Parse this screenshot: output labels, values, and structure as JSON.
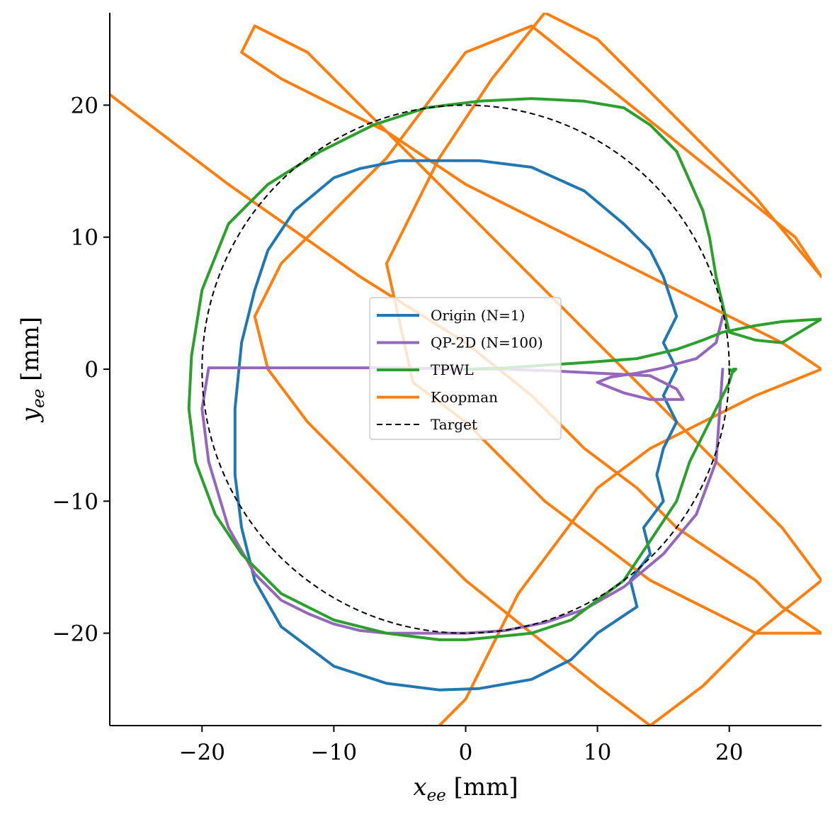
{
  "chart_data": {
    "type": "line",
    "title": "",
    "xlabel": {
      "var": "x",
      "sub": "ee",
      "unit": " [mm]"
    },
    "ylabel": {
      "var": "y",
      "sub": "ee",
      "unit": " [mm]"
    },
    "xlim": [
      -27,
      27
    ],
    "ylim": [
      -27,
      27
    ],
    "xticks": [
      -20,
      -10,
      0,
      10,
      20
    ],
    "yticks": [
      -20,
      -10,
      0,
      10,
      20
    ],
    "xtick_labels": [
      "−20",
      "−10",
      "0",
      "10",
      "20"
    ],
    "ytick_labels": [
      "−20",
      "−10",
      "0",
      "10",
      "20"
    ],
    "grid": false,
    "legend_position": "center",
    "series": [
      {
        "name": "Origin (N=1)",
        "color": "#1f77b4",
        "x": [
          1,
          5,
          9,
          12,
          14,
          15,
          16,
          15,
          16,
          15,
          16,
          15,
          14.5,
          15,
          13.5,
          14,
          12.5,
          13,
          10,
          8,
          5,
          1,
          -2,
          -6,
          -10,
          -14,
          -16,
          -17,
          -17.5,
          -17.5,
          -17,
          -16,
          -15,
          -13,
          -10,
          -8,
          -5,
          -2,
          0,
          1
        ],
        "y": [
          15.8,
          15.3,
          13.5,
          11,
          9,
          7,
          4,
          2,
          0,
          -2,
          -4,
          -6,
          -8,
          -10,
          -12,
          -14,
          -16,
          -18,
          -20,
          -22,
          -23.5,
          -24.2,
          -24.3,
          -23.8,
          -22.5,
          -19.5,
          -16,
          -12,
          -8,
          -3,
          2,
          6,
          9,
          12,
          14.5,
          15.2,
          15.8,
          15.8,
          15.8,
          15.8
        ]
      },
      {
        "name": "QP-2D (N=100)",
        "color": "#9467bd",
        "x": [
          19.5,
          19,
          17.5,
          16,
          15,
          13,
          11,
          10,
          12,
          14,
          16.5,
          16,
          14,
          10,
          6,
          3,
          1,
          -1,
          -5,
          -9,
          -13,
          -16,
          -18.5,
          -19.5,
          -20,
          -19.5,
          -18,
          -16,
          -14,
          -12,
          -10,
          -8,
          -6,
          -4,
          -2,
          0,
          3,
          6,
          9,
          12,
          15,
          17.5,
          19,
          19.5
        ],
        "y": [
          4,
          2,
          0.8,
          0.4,
          0.1,
          -0.3,
          -0.6,
          -1,
          -1.8,
          -2.3,
          -2.3,
          -1.5,
          -0.5,
          -0.3,
          -0.1,
          0,
          0,
          0,
          0.1,
          0.1,
          0.1,
          0.1,
          0.1,
          0.1,
          -3,
          -7,
          -12,
          -15.5,
          -17.5,
          -18.5,
          -19.3,
          -19.8,
          -20,
          -20,
          -20,
          -20,
          -19.8,
          -19.2,
          -18.2,
          -16.5,
          -14,
          -11,
          -7,
          0
        ]
      },
      {
        "name": "TPWL",
        "color": "#2ca02c",
        "x": [
          0,
          3,
          6,
          9,
          13,
          16,
          18,
          19.5,
          20.5,
          22,
          24,
          27,
          24,
          22,
          20,
          19,
          18.5,
          18,
          16,
          14,
          12,
          9,
          5,
          1,
          -3,
          -7,
          -11,
          -15,
          -18,
          -20,
          -20.8,
          -21,
          -20.5,
          -19,
          -17,
          -14,
          -10,
          -6,
          -2,
          0,
          2,
          5,
          8,
          10,
          12,
          14,
          16,
          17,
          18,
          19,
          19.5,
          20,
          20.3,
          20.5,
          20.3,
          20
        ],
        "y": [
          0,
          0.1,
          0.3,
          0.5,
          0.8,
          1.5,
          2.2,
          2.8,
          3,
          3.3,
          3.6,
          3.8,
          2,
          2.2,
          2.8,
          7,
          10,
          12,
          16.5,
          18.5,
          19.8,
          20.3,
          20.5,
          20.3,
          19.8,
          18.5,
          16.5,
          14,
          11,
          6,
          1,
          -3,
          -7,
          -11,
          -14,
          -17,
          -19,
          -20,
          -20.5,
          -20.5,
          -20.3,
          -20,
          -19,
          -17.5,
          -16,
          -13,
          -10,
          -7,
          -5,
          -3,
          -2,
          -1,
          0,
          0,
          -0.2,
          0
        ]
      },
      {
        "name": "Koopman",
        "color": "#ff7f0e",
        "x": [
          -27,
          -18,
          -8,
          0,
          5,
          9,
          13,
          16,
          19,
          22,
          24,
          27,
          22,
          18,
          14,
          10,
          6,
          3,
          0,
          -4,
          -6,
          -2,
          2,
          6,
          10,
          14,
          18,
          22,
          27,
          25,
          20,
          15,
          10,
          5,
          0,
          -3,
          -6,
          -10,
          -14,
          -16,
          -15,
          -12,
          -8,
          -4,
          0,
          5,
          10,
          14,
          18,
          22,
          27,
          24,
          20,
          16,
          12,
          8,
          4,
          0,
          -4,
          -8,
          -12,
          -16,
          -17,
          -14,
          -10,
          -6,
          -3,
          0,
          4,
          8,
          12,
          16,
          20,
          24,
          27,
          22,
          18,
          14,
          10,
          7,
          4,
          2,
          0,
          -2
        ],
        "y": [
          20.8,
          14,
          7,
          2,
          -2,
          -6,
          -9,
          -12,
          -14,
          -16,
          -18,
          -20,
          -20,
          -18,
          -16,
          -13,
          -10,
          -7,
          -4,
          -1,
          8,
          16,
          22,
          27,
          25,
          21,
          17,
          13,
          7,
          10,
          14,
          18,
          22,
          26,
          24,
          20,
          16,
          12,
          8,
          4,
          0,
          -4,
          -8,
          -12,
          -16,
          -20,
          -24,
          -27,
          -24,
          -20,
          -16,
          -12,
          -8,
          -4,
          0,
          4,
          8,
          12,
          16,
          20,
          24,
          26,
          24,
          22,
          20,
          18,
          16,
          14,
          12,
          10,
          8,
          6,
          4,
          2,
          0,
          -2,
          -4,
          -6,
          -9,
          -13,
          -17,
          -21,
          -25,
          -27
        ]
      },
      {
        "name": "Target",
        "color": "#000000",
        "dashed": true,
        "circle": {
          "cx": 0,
          "cy": 0,
          "r": 20
        }
      }
    ]
  }
}
